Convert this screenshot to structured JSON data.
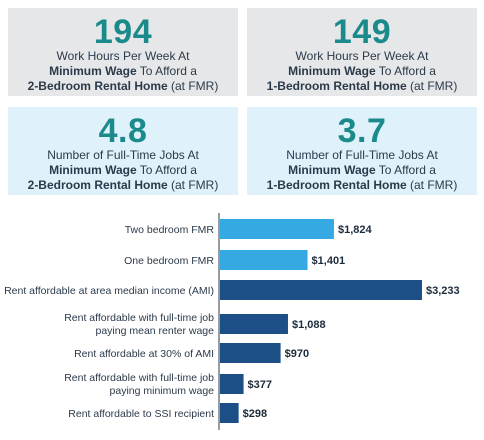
{
  "cards": [
    {
      "number": "194",
      "l1": "Work Hours Per Week At",
      "l2a": "Minimum Wage",
      "l2b": " To Afford a",
      "l3a": "2-Bedroom Rental Home",
      "l3b": " (at FMR)"
    },
    {
      "number": "149",
      "l1": "Work Hours Per Week At",
      "l2a": "Minimum Wage",
      "l2b": " To Afford a",
      "l3a": "1-Bedroom Rental Home",
      "l3b": " (at FMR)"
    },
    {
      "number": "4.8",
      "l1": "Number of Full-Time Jobs At",
      "l2a": "Minimum Wage",
      "l2b": " To Afford a",
      "l3a": "2-Bedroom Rental Home",
      "l3b": " (at FMR)"
    },
    {
      "number": "3.7",
      "l1": "Number of Full-Time Jobs At",
      "l2a": "Minimum Wage",
      "l2b": " To Afford a",
      "l3a": "1-Bedroom Rental Home",
      "l3b": " (at FMR)"
    }
  ],
  "colors": {
    "card_gray": "#e6e7e8",
    "card_blue": "#dff1fb",
    "number_teal": "#1a8a8a",
    "bar_light": "#35a9e1",
    "bar_dark": "#1c4f86"
  },
  "chart_data": {
    "type": "bar",
    "orientation": "horizontal",
    "categories": [
      [
        "Two bedroom FMR"
      ],
      [
        "One bedroom FMR"
      ],
      [
        "Rent affordable at area median income (AMI)"
      ],
      [
        "Rent affordable with full-time job",
        "paying mean renter wage"
      ],
      [
        "Rent affordable at 30% of AMI"
      ],
      [
        "Rent affordable with full-time job",
        "paying minimum wage"
      ],
      [
        "Rent affordable to SSI recipient"
      ]
    ],
    "values": [
      1824,
      1401,
      3233,
      1088,
      970,
      377,
      298
    ],
    "value_labels": [
      "$1,824",
      "$1,401",
      "$3,233",
      "$1,088",
      "$970",
      "$377",
      "$298"
    ],
    "bar_colors": [
      "light",
      "light",
      "dark",
      "dark",
      "dark",
      "dark",
      "dark"
    ],
    "title": "",
    "xlabel": "",
    "ylabel": "",
    "xlim": [
      0,
      3233
    ],
    "grid": false,
    "legend": "none"
  }
}
